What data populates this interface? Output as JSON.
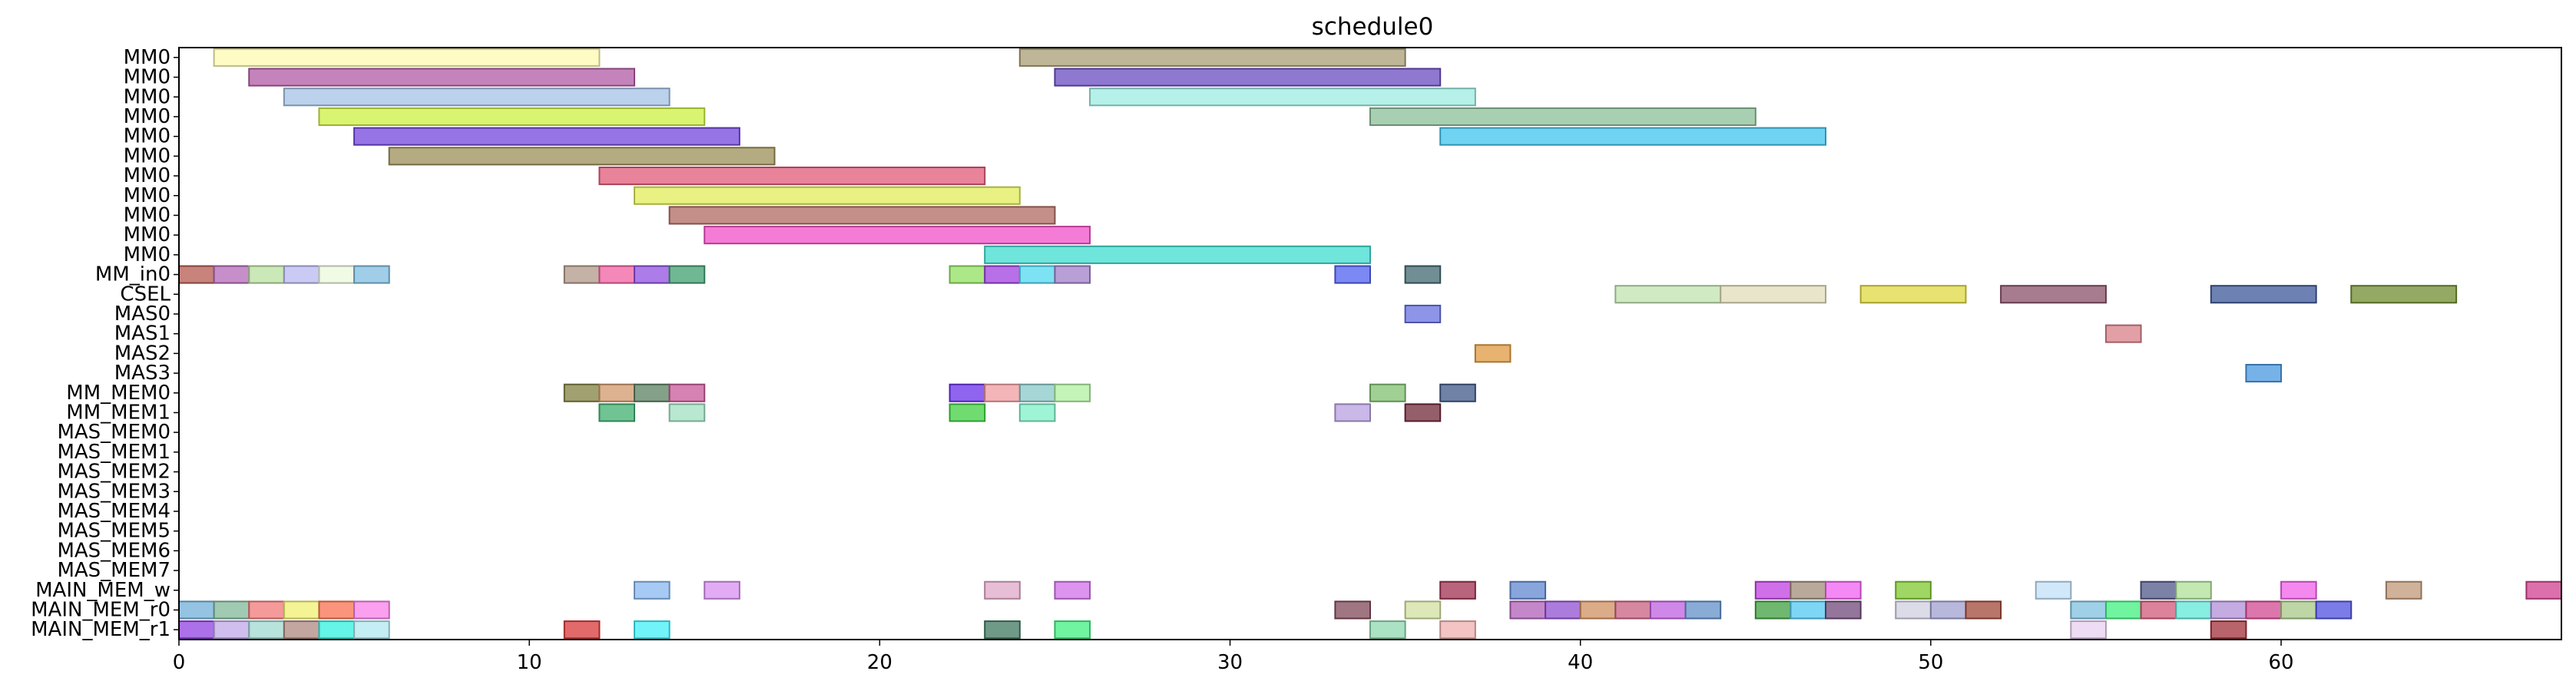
{
  "chart_data": {
    "type": "gantt",
    "title": "schedule0",
    "xlabel": "",
    "ylabel": "",
    "xlim": [
      0,
      68
    ],
    "x_ticks": [
      0,
      10,
      20,
      30,
      40,
      50,
      60
    ],
    "grid": false,
    "legend": "none",
    "rows": [
      "MM0",
      "MM0",
      "MM0",
      "MM0",
      "MM0",
      "MM0",
      "MM0",
      "MM0",
      "MM0",
      "MM0",
      "MM0",
      "MM_in0",
      "CSEL",
      "MAS0",
      "MAS1",
      "MAS2",
      "MAS3",
      "MM_MEM0",
      "MM_MEM1",
      "MAS_MEM0",
      "MAS_MEM1",
      "MAS_MEM2",
      "MAS_MEM3",
      "MAS_MEM4",
      "MAS_MEM5",
      "MAS_MEM6",
      "MAS_MEM7",
      "MAIN_MEM_w",
      "MAIN_MEM_r0",
      "MAIN_MEM_r1"
    ],
    "tasks": [
      {
        "row": 0,
        "start": 1,
        "end": 12,
        "color": "#fff9b0"
      },
      {
        "row": 0,
        "start": 24,
        "end": 35,
        "color": "#a89d74"
      },
      {
        "row": 1,
        "start": 2,
        "end": 13,
        "color": "#b25aa4"
      },
      {
        "row": 1,
        "start": 25,
        "end": 36,
        "color": "#6a4bc0"
      },
      {
        "row": 2,
        "start": 3,
        "end": 14,
        "color": "#a4c2e6"
      },
      {
        "row": 2,
        "start": 26,
        "end": 37,
        "color": "#9cece2"
      },
      {
        "row": 3,
        "start": 4,
        "end": 15,
        "color": "#ccf040"
      },
      {
        "row": 3,
        "start": 34,
        "end": 45,
        "color": "#8cbf98"
      },
      {
        "row": 4,
        "start": 5,
        "end": 16,
        "color": "#7346dc"
      },
      {
        "row": 4,
        "start": 36,
        "end": 47,
        "color": "#40c4ee"
      },
      {
        "row": 5,
        "start": 6,
        "end": 17,
        "color": "#9c8f58"
      },
      {
        "row": 6,
        "start": 12,
        "end": 23,
        "color": "#e05a78"
      },
      {
        "row": 7,
        "start": 13,
        "end": 24,
        "color": "#e0ec58"
      },
      {
        "row": 8,
        "start": 14,
        "end": 25,
        "color": "#b06a60"
      },
      {
        "row": 9,
        "start": 15,
        "end": 26,
        "color": "#f050c8"
      },
      {
        "row": 10,
        "start": 23,
        "end": 34,
        "color": "#40dcd0"
      },
      {
        "row": 11,
        "start": 0,
        "end": 1,
        "color": "#b45a50"
      },
      {
        "row": 11,
        "start": 1,
        "end": 2,
        "color": "#b46ab8"
      },
      {
        "row": 11,
        "start": 2,
        "end": 3,
        "color": "#b8e0a0"
      },
      {
        "row": 11,
        "start": 3,
        "end": 4,
        "color": "#b8b8f0"
      },
      {
        "row": 11,
        "start": 4,
        "end": 5,
        "color": "#ecf8dc"
      },
      {
        "row": 11,
        "start": 5,
        "end": 6,
        "color": "#80bce0"
      },
      {
        "row": 11,
        "start": 11,
        "end": 12,
        "color": "#b09888"
      },
      {
        "row": 11,
        "start": 12,
        "end": 13,
        "color": "#f060a0"
      },
      {
        "row": 11,
        "start": 13,
        "end": 14,
        "color": "#9050e0"
      },
      {
        "row": 11,
        "start": 14,
        "end": 15,
        "color": "#40a070"
      },
      {
        "row": 11,
        "start": 22,
        "end": 23,
        "color": "#90e060"
      },
      {
        "row": 11,
        "start": 23,
        "end": 24,
        "color": "#a040e0"
      },
      {
        "row": 11,
        "start": 24,
        "end": 25,
        "color": "#50d8f0"
      },
      {
        "row": 11,
        "start": 25,
        "end": 26,
        "color": "#a080c8"
      },
      {
        "row": 11,
        "start": 33,
        "end": 34,
        "color": "#5060f0"
      },
      {
        "row": 11,
        "start": 35,
        "end": 36,
        "color": "#406870"
      },
      {
        "row": 12,
        "start": 41,
        "end": 44,
        "color": "#c0e4b0"
      },
      {
        "row": 12,
        "start": 44,
        "end": 47,
        "color": "#e0dcb8"
      },
      {
        "row": 12,
        "start": 48,
        "end": 51,
        "color": "#e0d840"
      },
      {
        "row": 12,
        "start": 52,
        "end": 55,
        "color": "#885068"
      },
      {
        "row": 12,
        "start": 58,
        "end": 61,
        "color": "#3c5898"
      },
      {
        "row": 12,
        "start": 62,
        "end": 65,
        "color": "#708c30"
      },
      {
        "row": 13,
        "start": 35,
        "end": 36,
        "color": "#6870e0"
      },
      {
        "row": 14,
        "start": 55,
        "end": 56,
        "color": "#d88088"
      },
      {
        "row": 15,
        "start": 37,
        "end": 38,
        "color": "#e09a40"
      },
      {
        "row": 16,
        "start": 59,
        "end": 60,
        "color": "#4898e0"
      },
      {
        "row": 17,
        "start": 11,
        "end": 12,
        "color": "#808040"
      },
      {
        "row": 17,
        "start": 12,
        "end": 13,
        "color": "#d0986c"
      },
      {
        "row": 17,
        "start": 13,
        "end": 14,
        "color": "#5c8060"
      },
      {
        "row": 17,
        "start": 14,
        "end": 15,
        "color": "#c85898"
      },
      {
        "row": 17,
        "start": 22,
        "end": 23,
        "color": "#6a30e8"
      },
      {
        "row": 17,
        "start": 23,
        "end": 24,
        "color": "#f09ca0"
      },
      {
        "row": 17,
        "start": 24,
        "end": 25,
        "color": "#88c8c8"
      },
      {
        "row": 17,
        "start": 25,
        "end": 26,
        "color": "#b0f0a0"
      },
      {
        "row": 17,
        "start": 34,
        "end": 35,
        "color": "#80c070"
      },
      {
        "row": 17,
        "start": 36,
        "end": 37,
        "color": "#405888"
      },
      {
        "row": 18,
        "start": 12,
        "end": 13,
        "color": "#40b070"
      },
      {
        "row": 18,
        "start": 14,
        "end": 15,
        "color": "#a0e0c0"
      },
      {
        "row": 18,
        "start": 22,
        "end": 23,
        "color": "#40d040"
      },
      {
        "row": 18,
        "start": 24,
        "end": 25,
        "color": "#80f0c8"
      },
      {
        "row": 18,
        "start": 33,
        "end": 34,
        "color": "#b8a0e0"
      },
      {
        "row": 18,
        "start": 35,
        "end": 36,
        "color": "#702838"
      },
      {
        "row": 27,
        "start": 13,
        "end": 14,
        "color": "#88b8f0"
      },
      {
        "row": 27,
        "start": 15,
        "end": 16,
        "color": "#d890f0"
      },
      {
        "row": 27,
        "start": 23,
        "end": 24,
        "color": "#e0a8c8"
      },
      {
        "row": 27,
        "start": 25,
        "end": 26,
        "color": "#d070e8"
      },
      {
        "row": 27,
        "start": 36,
        "end": 37,
        "color": "#a03050"
      },
      {
        "row": 27,
        "start": 38,
        "end": 39,
        "color": "#6088d0"
      },
      {
        "row": 27,
        "start": 45,
        "end": 46,
        "color": "#c040e0"
      },
      {
        "row": 27,
        "start": 46,
        "end": 47,
        "color": "#a08c78"
      },
      {
        "row": 27,
        "start": 47,
        "end": 48,
        "color": "#f060f0"
      },
      {
        "row": 27,
        "start": 49,
        "end": 50,
        "color": "#80c830"
      },
      {
        "row": 27,
        "start": 53,
        "end": 54,
        "color": "#c0e0f8"
      },
      {
        "row": 27,
        "start": 56,
        "end": 57,
        "color": "#505888"
      },
      {
        "row": 27,
        "start": 57,
        "end": 58,
        "color": "#b0e098"
      },
      {
        "row": 27,
        "start": 60,
        "end": 61,
        "color": "#f060e8"
      },
      {
        "row": 27,
        "start": 63,
        "end": 64,
        "color": "#c09878"
      },
      {
        "row": 27,
        "start": 67,
        "end": 68,
        "color": "#d04090"
      },
      {
        "row": 28,
        "start": 0,
        "end": 1,
        "color": "#70b0d8"
      },
      {
        "row": 28,
        "start": 1,
        "end": 2,
        "color": "#80b898"
      },
      {
        "row": 28,
        "start": 2,
        "end": 3,
        "color": "#f07878"
      },
      {
        "row": 28,
        "start": 3,
        "end": 4,
        "color": "#f0f070"
      },
      {
        "row": 28,
        "start": 4,
        "end": 5,
        "color": "#f87050"
      },
      {
        "row": 28,
        "start": 5,
        "end": 6,
        "color": "#f880e8"
      },
      {
        "row": 28,
        "start": 33,
        "end": 34,
        "color": "#804858"
      },
      {
        "row": 28,
        "start": 35,
        "end": 36,
        "color": "#d0e0a0"
      },
      {
        "row": 28,
        "start": 38,
        "end": 39,
        "color": "#b060b8"
      },
      {
        "row": 28,
        "start": 39,
        "end": 40,
        "color": "#9050d0"
      },
      {
        "row": 28,
        "start": 40,
        "end": 41,
        "color": "#d09060"
      },
      {
        "row": 28,
        "start": 41,
        "end": 42,
        "color": "#c86080"
      },
      {
        "row": 28,
        "start": 42,
        "end": 43,
        "color": "#c060e0"
      },
      {
        "row": 28,
        "start": 43,
        "end": 44,
        "color": "#6090c8"
      },
      {
        "row": 28,
        "start": 45,
        "end": 46,
        "color": "#40a040"
      },
      {
        "row": 28,
        "start": 46,
        "end": 47,
        "color": "#50c8f0"
      },
      {
        "row": 28,
        "start": 47,
        "end": 48,
        "color": "#704878"
      },
      {
        "row": 28,
        "start": 49,
        "end": 50,
        "color": "#d0d0e0"
      },
      {
        "row": 28,
        "start": 50,
        "end": 51,
        "color": "#a0a0d0"
      },
      {
        "row": 28,
        "start": 51,
        "end": 52,
        "color": "#a04838"
      },
      {
        "row": 28,
        "start": 54,
        "end": 55,
        "color": "#80c0e0"
      },
      {
        "row": 28,
        "start": 55,
        "end": 56,
        "color": "#40f080"
      },
      {
        "row": 28,
        "start": 56,
        "end": 57,
        "color": "#d05878"
      },
      {
        "row": 28,
        "start": 57,
        "end": 58,
        "color": "#60e8d8"
      },
      {
        "row": 28,
        "start": 58,
        "end": 59,
        "color": "#b090d8"
      },
      {
        "row": 28,
        "start": 59,
        "end": 60,
        "color": "#d04890"
      },
      {
        "row": 28,
        "start": 60,
        "end": 61,
        "color": "#a8c888"
      },
      {
        "row": 28,
        "start": 61,
        "end": 62,
        "color": "#5050e0"
      },
      {
        "row": 29,
        "start": 0,
        "end": 1,
        "color": "#9040e0"
      },
      {
        "row": 29,
        "start": 1,
        "end": 2,
        "color": "#c0a8e8"
      },
      {
        "row": 29,
        "start": 2,
        "end": 3,
        "color": "#a0d8d0"
      },
      {
        "row": 29,
        "start": 3,
        "end": 4,
        "color": "#b08880"
      },
      {
        "row": 29,
        "start": 4,
        "end": 5,
        "color": "#30f0e0"
      },
      {
        "row": 29,
        "start": 5,
        "end": 6,
        "color": "#b0e8f0"
      },
      {
        "row": 29,
        "start": 11,
        "end": 12,
        "color": "#d83838"
      },
      {
        "row": 29,
        "start": 13,
        "end": 14,
        "color": "#40f0f8"
      },
      {
        "row": 29,
        "start": 23,
        "end": 24,
        "color": "#407860"
      },
      {
        "row": 29,
        "start": 25,
        "end": 26,
        "color": "#40f080"
      },
      {
        "row": 29,
        "start": 34,
        "end": 35,
        "color": "#90d8b0"
      },
      {
        "row": 29,
        "start": 36,
        "end": 37,
        "color": "#f0b0b0"
      },
      {
        "row": 29,
        "start": 54,
        "end": 55,
        "color": "#e8d0f0"
      },
      {
        "row": 29,
        "start": 58,
        "end": 59,
        "color": "#a03038"
      }
    ]
  }
}
